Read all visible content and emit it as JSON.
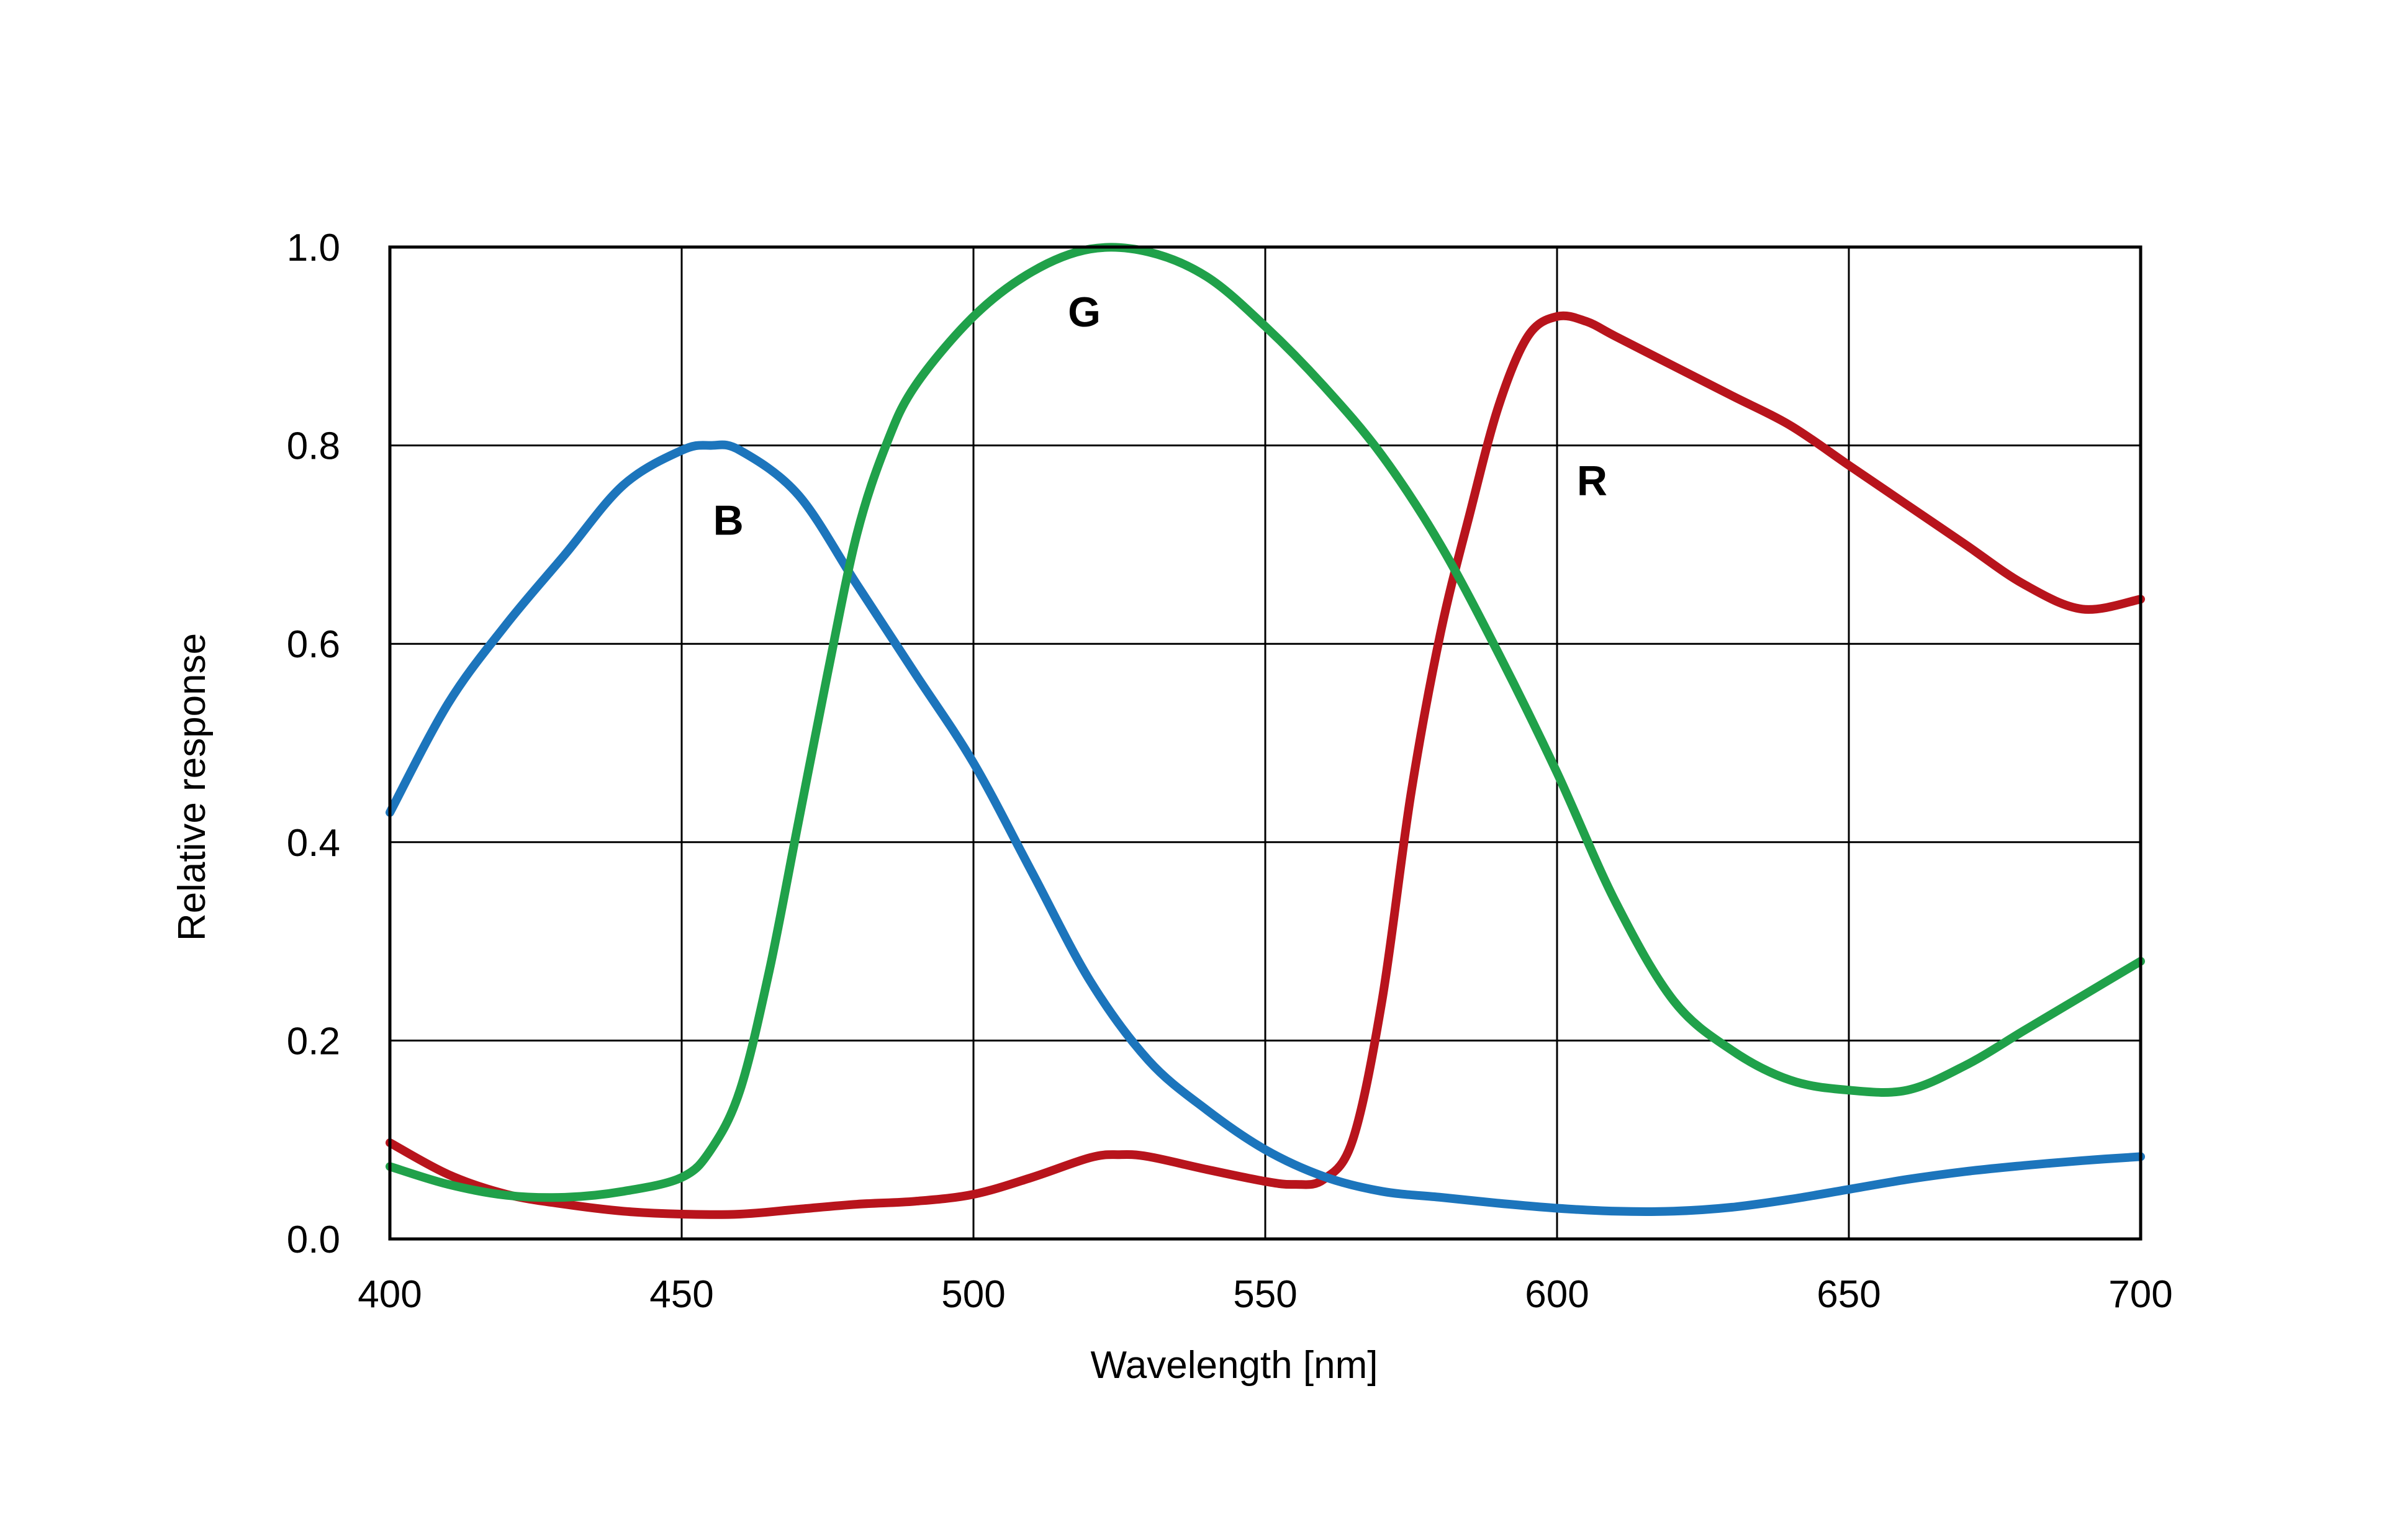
{
  "chart_data": {
    "type": "line",
    "title": "",
    "xlabel": "Wavelength [nm]",
    "ylabel": "Relative response",
    "xlim": [
      400,
      700
    ],
    "ylim": [
      0,
      1.0
    ],
    "xticks": [
      400,
      450,
      500,
      550,
      600,
      650,
      700
    ],
    "yticks": [
      0,
      0.2,
      0.4,
      0.6,
      0.8,
      1.0
    ],
    "xtick_labels": [
      "400",
      "450",
      "500",
      "550",
      "600",
      "650",
      "700"
    ],
    "ytick_labels": [
      "0.0",
      "0.2",
      "0.4",
      "0.6",
      "0.8",
      "1.0"
    ],
    "grid": true,
    "legend": "none",
    "series": [
      {
        "name": "B",
        "color": "#1c75bc",
        "x": [
          400,
          410,
          420,
          430,
          440,
          450,
          455,
          460,
          470,
          480,
          490,
          500,
          510,
          520,
          530,
          540,
          550,
          560,
          570,
          580,
          590,
          600,
          610,
          620,
          630,
          640,
          650,
          660,
          670,
          680,
          690,
          700
        ],
        "y": [
          0.43,
          0.54,
          0.62,
          0.69,
          0.76,
          0.795,
          0.8,
          0.795,
          0.75,
          0.66,
          0.57,
          0.48,
          0.37,
          0.26,
          0.18,
          0.13,
          0.09,
          0.063,
          0.048,
          0.042,
          0.036,
          0.031,
          0.028,
          0.028,
          0.032,
          0.04,
          0.05,
          0.06,
          0.068,
          0.074,
          0.079,
          0.083
        ]
      },
      {
        "name": "G",
        "color": "#20a14a",
        "x": [
          400,
          410,
          420,
          430,
          440,
          450,
          455,
          460,
          465,
          470,
          475,
          480,
          485,
          490,
          500,
          510,
          520,
          530,
          540,
          550,
          560,
          570,
          580,
          590,
          600,
          610,
          620,
          630,
          640,
          650,
          660,
          670,
          680,
          690,
          700
        ],
        "y": [
          0.073,
          0.055,
          0.044,
          0.042,
          0.048,
          0.062,
          0.09,
          0.15,
          0.27,
          0.42,
          0.57,
          0.71,
          0.8,
          0.86,
          0.93,
          0.975,
          0.998,
          0.995,
          0.97,
          0.92,
          0.86,
          0.79,
          0.7,
          0.59,
          0.47,
          0.34,
          0.24,
          0.19,
          0.16,
          0.15,
          0.15,
          0.175,
          0.21,
          0.245,
          0.28
        ]
      },
      {
        "name": "R",
        "color": "#b8141c",
        "x": [
          400,
          410,
          420,
          430,
          440,
          450,
          460,
          470,
          480,
          490,
          500,
          510,
          520,
          525,
          530,
          540,
          550,
          555,
          560,
          565,
          570,
          575,
          580,
          585,
          590,
          595,
          600,
          605,
          610,
          620,
          630,
          640,
          650,
          660,
          670,
          680,
          690,
          700
        ],
        "y": [
          0.097,
          0.065,
          0.045,
          0.035,
          0.028,
          0.025,
          0.025,
          0.03,
          0.035,
          0.038,
          0.045,
          0.062,
          0.082,
          0.085,
          0.083,
          0.07,
          0.058,
          0.055,
          0.06,
          0.1,
          0.24,
          0.45,
          0.61,
          0.73,
          0.84,
          0.91,
          0.93,
          0.925,
          0.91,
          0.88,
          0.85,
          0.82,
          0.78,
          0.74,
          0.7,
          0.66,
          0.635,
          0.645
        ]
      }
    ],
    "annotations": [
      {
        "text": "B",
        "x": 458,
        "y": 0.71
      },
      {
        "text": "G",
        "x": 519,
        "y": 0.92
      },
      {
        "text": "R",
        "x": 606,
        "y": 0.75
      }
    ]
  }
}
